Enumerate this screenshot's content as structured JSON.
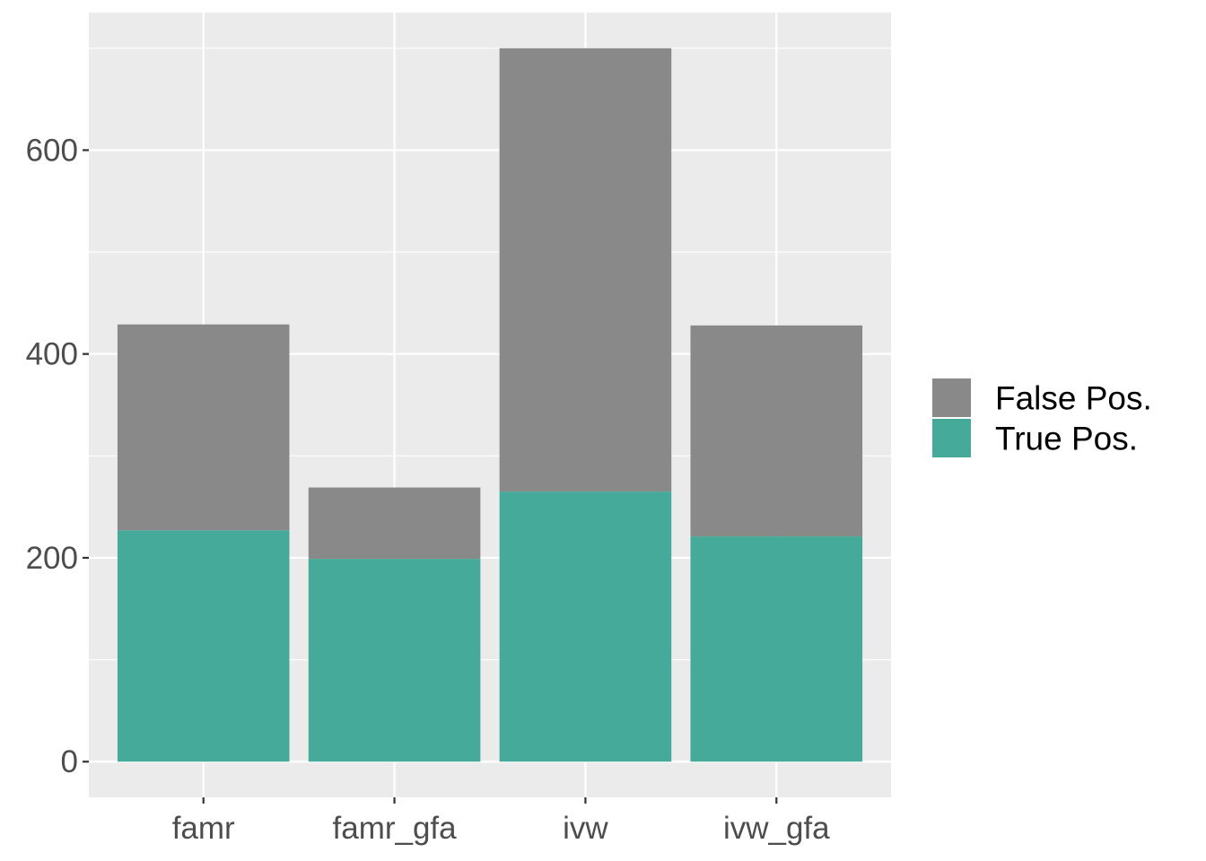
{
  "chart_data": {
    "type": "bar",
    "stacked": true,
    "categories": [
      "famr",
      "famr_gfa",
      "ivw",
      "ivw_gfa"
    ],
    "series": [
      {
        "name": "True Pos.",
        "values": [
          227,
          199,
          265,
          221
        ],
        "color": "#45AA9A"
      },
      {
        "name": "False Pos.",
        "values": [
          202,
          70,
          435,
          207
        ],
        "color": "#898989"
      }
    ],
    "totals": [
      429,
      269,
      700,
      428
    ],
    "y_ticks": [
      0,
      200,
      400,
      600
    ],
    "ylim": [
      -35,
      735
    ],
    "xlabel": "",
    "ylabel": "",
    "grid": true,
    "panel_background": "#EBEBEB",
    "legend": {
      "position": "right",
      "entries": [
        "False Pos.",
        "True Pos."
      ]
    }
  }
}
